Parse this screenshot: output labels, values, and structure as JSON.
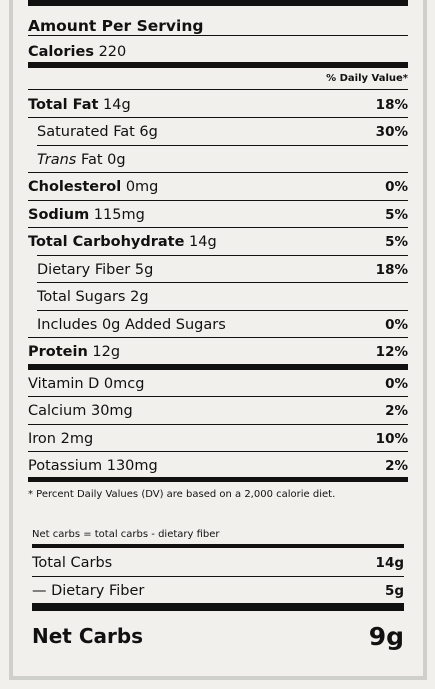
{
  "header": {
    "amount_per_serving": "Amount Per Serving",
    "calories_label": "Calories",
    "calories_value": "220",
    "daily_value_header": "% Daily Value*"
  },
  "nutrients": [
    {
      "label": "Total Fat",
      "amount": "14g",
      "dv": "18%"
    },
    {
      "label": "Saturated Fat",
      "amount": "6g",
      "dv": "30%"
    },
    {
      "label": "Trans",
      "amount": "Fat 0g",
      "dv": ""
    },
    {
      "label": "Cholesterol",
      "amount": "0mg",
      "dv": "0%"
    },
    {
      "label": "Sodium",
      "amount": "115mg",
      "dv": "5%"
    },
    {
      "label": "Total Carbohydrate",
      "amount": "14g",
      "dv": "5%"
    },
    {
      "label": "Dietary Fiber",
      "amount": "5g",
      "dv": "18%"
    },
    {
      "label": "Total Sugars",
      "amount": "2g",
      "dv": ""
    },
    {
      "label": "Includes 0g Added Sugars",
      "amount": "",
      "dv": "0%"
    },
    {
      "label": "Protein",
      "amount": "12g",
      "dv": "12%"
    }
  ],
  "vitamins": [
    {
      "label": "Vitamin D 0mcg",
      "dv": "0%"
    },
    {
      "label": "Calcium 30mg",
      "dv": "2%"
    },
    {
      "label": "Iron 2mg",
      "dv": "10%"
    },
    {
      "label": "Potassium 130mg",
      "dv": "2%"
    }
  ],
  "footnote": "* Percent Daily Values (DV) are based on a 2,000 calorie diet.",
  "net_carbs": {
    "note": "Net carbs = total carbs - dietary fiber",
    "total_carbs_label": "Total Carbs",
    "total_carbs_value": "14g",
    "fiber_label": "— Dietary Fiber",
    "fiber_value": "5g",
    "net_label": "Net Carbs",
    "net_value": "9g"
  }
}
